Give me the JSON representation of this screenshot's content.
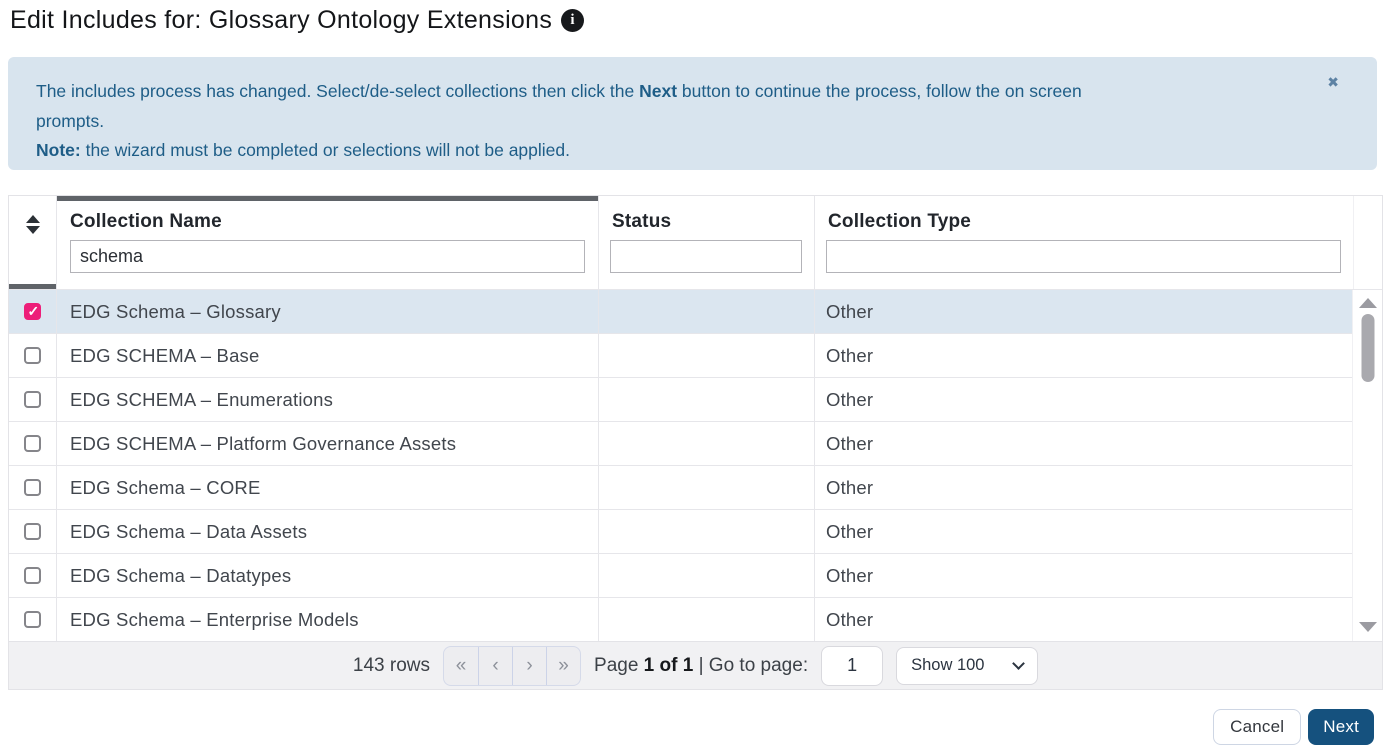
{
  "header": {
    "title": "Edit Includes for: Glossary Ontology Extensions",
    "info_icon_glyph": "i"
  },
  "banner": {
    "message_before": "The includes process has changed. Select/de-select collections then click the ",
    "message_bold": "Next",
    "message_after": " button to continue the process, follow the on screen",
    "message_line2": "prompts.",
    "note_bold": "Note:",
    "note_text": " the wizard must be completed or selections will not be applied.",
    "close_glyph": "✖"
  },
  "table": {
    "header": {
      "name_label": "Collection Name",
      "status_label": "Status",
      "type_label": "Collection Type"
    },
    "filters": {
      "name": "schema",
      "status": "",
      "type": ""
    },
    "rows": [
      {
        "checked": true,
        "selected": true,
        "name": "EDG Schema – Glossary",
        "status": "",
        "type": "Other"
      },
      {
        "checked": false,
        "selected": false,
        "name": "EDG SCHEMA – Base",
        "status": "",
        "type": "Other"
      },
      {
        "checked": false,
        "selected": false,
        "name": "EDG SCHEMA – Enumerations",
        "status": "",
        "type": "Other"
      },
      {
        "checked": false,
        "selected": false,
        "name": "EDG SCHEMA – Platform Governance Assets",
        "status": "",
        "type": "Other"
      },
      {
        "checked": false,
        "selected": false,
        "name": "EDG Schema – CORE",
        "status": "",
        "type": "Other"
      },
      {
        "checked": false,
        "selected": false,
        "name": "EDG Schema – Data Assets",
        "status": "",
        "type": "Other"
      },
      {
        "checked": false,
        "selected": false,
        "name": "EDG Schema – Datatypes",
        "status": "",
        "type": "Other"
      },
      {
        "checked": false,
        "selected": false,
        "name": "EDG Schema – Enterprise Models",
        "status": "",
        "type": "Other"
      }
    ]
  },
  "pagination": {
    "rows_count": "143 rows",
    "first_glyph": "«",
    "prev_glyph": "‹",
    "next_glyph": "›",
    "last_glyph": "»",
    "page_word": "Page ",
    "page_bold": "1 of 1",
    "separator": " | ",
    "goto_label": "Go to page:",
    "goto_value": "1",
    "page_size": "Show 100"
  },
  "actions": {
    "cancel_label": "Cancel",
    "next_label": "Next"
  },
  "colors": {
    "accent_pink": "#ed1e79",
    "banner_bg": "#d8e4ee",
    "banner_text": "#1e5d87",
    "selected_row_bg": "#dbe6f0",
    "primary_button_bg": "#15517e",
    "header_drag_bar": "#5f6368"
  }
}
